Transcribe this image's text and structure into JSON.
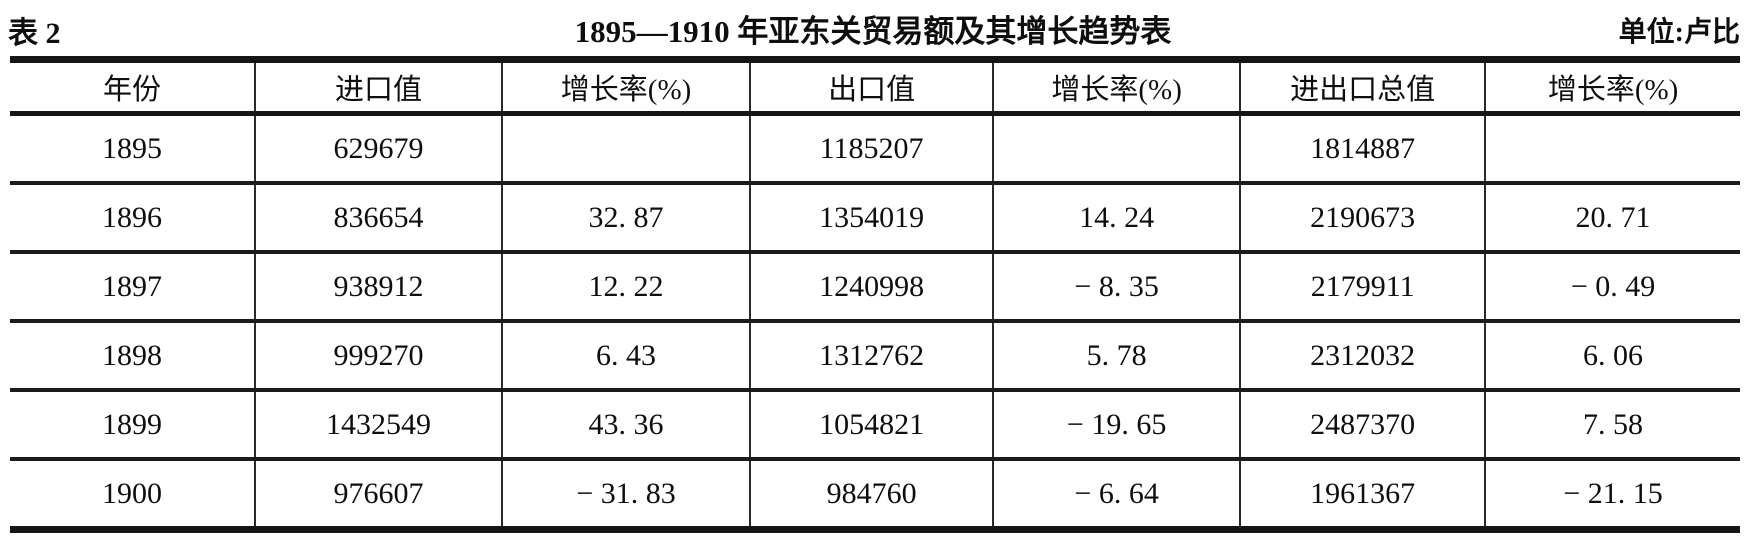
{
  "header": {
    "table_label": "表 2",
    "title": "1895—1910 年亚东关贸易额及其增长趋势表",
    "unit_label": "单位:卢比"
  },
  "table": {
    "columns": [
      "年份",
      "进口值",
      "增长率(%)",
      "出口值",
      "增长率(%)",
      "进出口总值",
      "增长率(%)"
    ],
    "rows": [
      [
        "1895",
        "629679",
        "",
        "1185207",
        "",
        "1814887",
        ""
      ],
      [
        "1896",
        "836654",
        "32. 87",
        "1354019",
        "14. 24",
        "2190673",
        "20. 71"
      ],
      [
        "1897",
        "938912",
        "12. 22",
        "1240998",
        "− 8. 35",
        "2179911",
        "− 0. 49"
      ],
      [
        "1898",
        "999270",
        "6. 43",
        "1312762",
        "5. 78",
        "2312032",
        "6. 06"
      ],
      [
        "1899",
        "1432549",
        "43. 36",
        "1054821",
        "− 19. 65",
        "2487370",
        "7. 58"
      ],
      [
        "1900",
        "976607",
        "− 31. 83",
        "984760",
        "− 6. 64",
        "1961367",
        "− 21. 15"
      ]
    ]
  },
  "chart_data": {
    "type": "table",
    "title": "1895—1910 年亚东关贸易额及其增长趋势表",
    "unit": "卢比",
    "columns": [
      "年份",
      "进口值",
      "增长率(%)",
      "出口值",
      "增长率(%)",
      "进出口总值",
      "增长率(%)"
    ],
    "rows": [
      [
        1895,
        629679,
        null,
        1185207,
        null,
        1814887,
        null
      ],
      [
        1896,
        836654,
        32.87,
        1354019,
        14.24,
        2190673,
        20.71
      ],
      [
        1897,
        938912,
        12.22,
        1240998,
        -8.35,
        2179911,
        -0.49
      ],
      [
        1898,
        999270,
        6.43,
        1312762,
        5.78,
        2312032,
        6.06
      ],
      [
        1899,
        1432549,
        43.36,
        1054821,
        -19.65,
        2487370,
        7.58
      ],
      [
        1900,
        976607,
        -31.83,
        984760,
        -6.64,
        1961367,
        -21.15
      ]
    ]
  }
}
